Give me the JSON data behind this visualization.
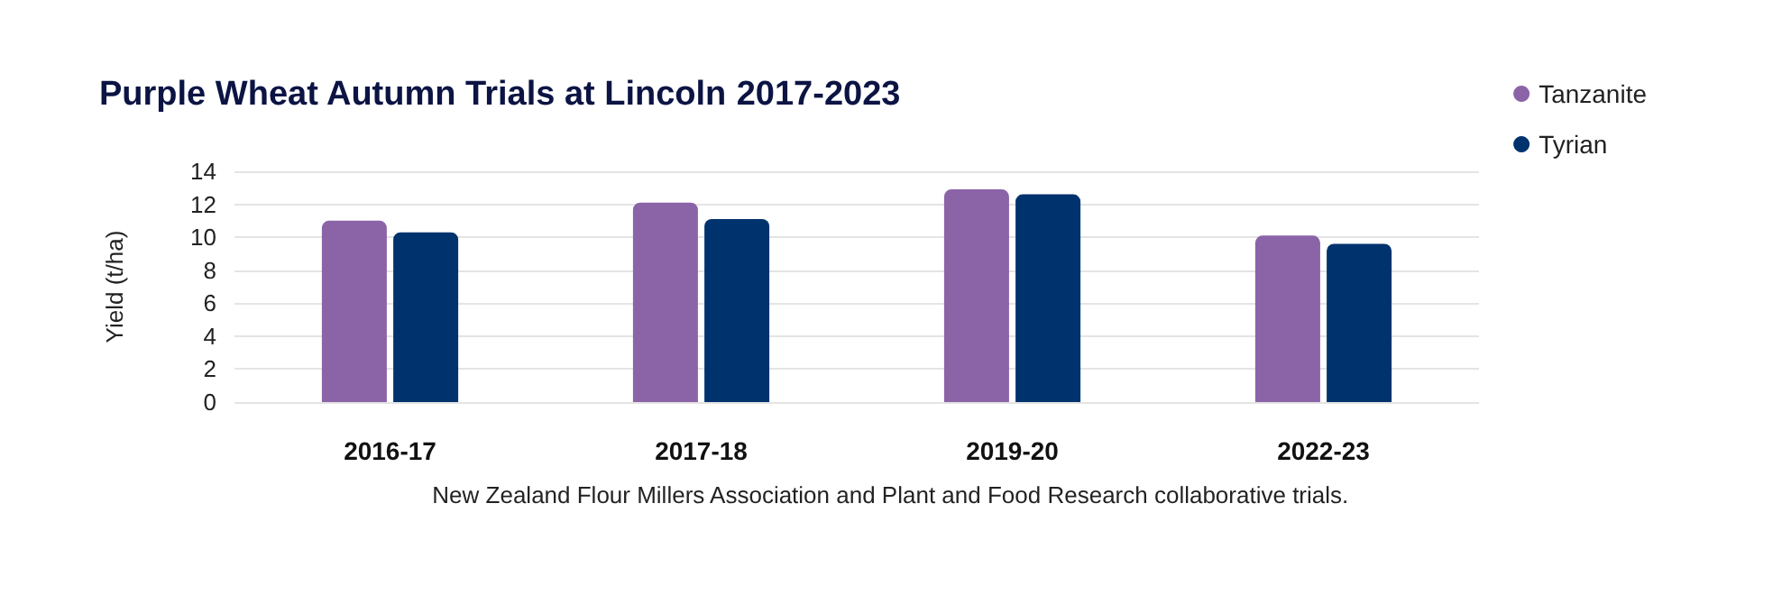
{
  "chart_data": {
    "type": "bar",
    "title": "Purple Wheat Autumn Trials at Lincoln",
    "subtitle": "2017-2023",
    "ylabel": "Yield (t/ha)",
    "categories": [
      "2016-17",
      "2017-18",
      "2019-20",
      "2022-23"
    ],
    "series": [
      {
        "name": "Tanzanite",
        "color": "#8b64a8",
        "values": [
          11.0,
          12.1,
          12.9,
          10.1
        ]
      },
      {
        "name": "Tyrian",
        "color": "#00336e",
        "values": [
          10.3,
          11.1,
          12.6,
          9.6
        ]
      }
    ],
    "ylim": [
      0,
      14
    ],
    "yticks": [
      0,
      2,
      4,
      6,
      8,
      10,
      12,
      14
    ],
    "grid": "y",
    "legend": "top right",
    "annotations": [
      "New Zealand Flour Millers Association and Plant and Food Research collaborative trials."
    ]
  }
}
